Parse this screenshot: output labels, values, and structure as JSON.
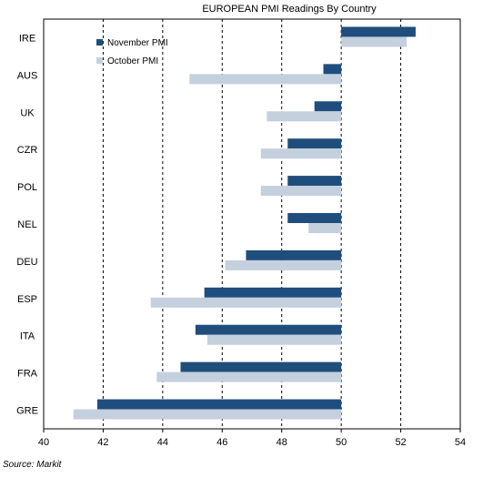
{
  "chart_data": {
    "type": "bar",
    "orientation": "horizontal",
    "title": "EUROPEAN PMI Readings By Country",
    "xlabel": "",
    "ylabel": "",
    "categories": [
      "IRE",
      "AUS",
      "UK",
      "CZR",
      "POL",
      "NEL",
      "DEU",
      "ESP",
      "ITA",
      "FRA",
      "GRE"
    ],
    "series": [
      {
        "name": "November PMI",
        "color": "#1f4e7d",
        "values": [
          52.5,
          49.4,
          49.1,
          48.2,
          48.2,
          48.2,
          46.8,
          45.4,
          45.1,
          44.6,
          41.8
        ]
      },
      {
        "name": "October PMI",
        "color": "#c5d0de",
        "values": [
          52.2,
          44.9,
          47.5,
          47.3,
          47.3,
          48.9,
          46.1,
          43.6,
          45.5,
          43.8,
          41.0
        ]
      }
    ],
    "xlim": [
      40,
      54
    ],
    "baseline": 50,
    "xticks": [
      "40",
      "42",
      "44",
      "46",
      "48",
      "50",
      "52",
      "54"
    ],
    "grid": "vertical dashed",
    "legend_position": "top-left"
  },
  "footer": {
    "source": "Source: Markit"
  }
}
